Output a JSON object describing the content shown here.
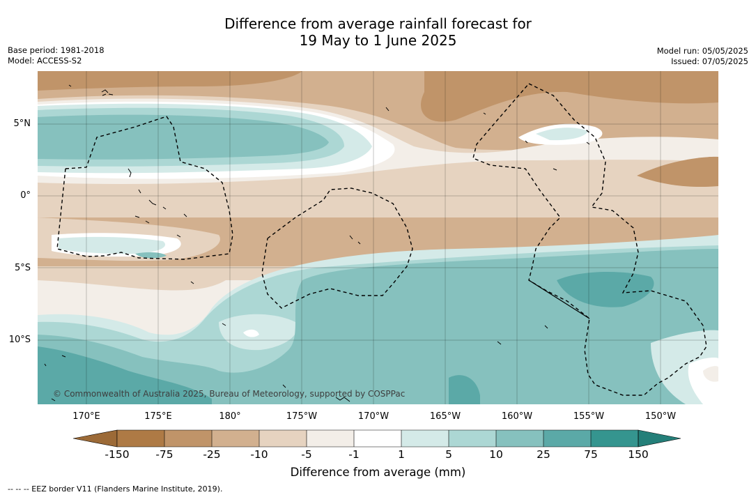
{
  "title": {
    "line1": "Difference from average rainfall forecast for",
    "line2": "19 May to 1 June 2025"
  },
  "meta": {
    "base_period": "Base period: 1981-2018",
    "model": "Model: ACCESS-S2",
    "model_run": "Model run: 05/05/2025",
    "issued": "Issued: 07/05/2025"
  },
  "axes": {
    "y_labels": [
      "5°N",
      "0°",
      "5°S",
      "10°S"
    ],
    "x_labels": [
      "170°E",
      "175°E",
      "180°",
      "175°W",
      "170°W",
      "165°W",
      "160°W",
      "155°W",
      "150°W"
    ],
    "lat_range": [
      -14.5,
      8.8
    ],
    "lon_range_east": [
      166.6,
      214.2
    ],
    "grid": true
  },
  "legend": {
    "title": "Difference from average (mm)",
    "ticks": [
      "-150",
      "-75",
      "-25",
      "-10",
      "-5",
      "-1",
      "1",
      "5",
      "10",
      "25",
      "75",
      "150"
    ],
    "colors": {
      "lt_-150": "#9c6a37",
      "-150_-75": "#ae7a45",
      "-75_-25": "#c09469",
      "-25_-10": "#d2b08f",
      "-10_-5": "#e6d3c0",
      "-5_-1": "#f3eee8",
      "-1_1": "#ffffff",
      "1_5": "#d4eae8",
      "5_10": "#acd7d4",
      "10_25": "#86c1be",
      "25_75": "#5ba9a7",
      "75_150": "#35958f",
      "gt_150": "#247f79"
    }
  },
  "copyright": "© Commonwealth of Australia 2025, Bureau of Meteorology, supported by COSPPac",
  "footer": "--  --  -- EEZ border V11 (Flanders Marine Institute, 2019)."
}
